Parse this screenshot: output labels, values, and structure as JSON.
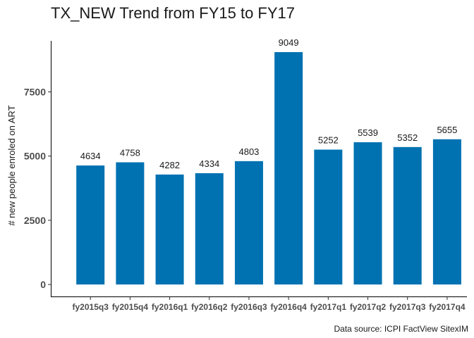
{
  "chart_data": {
    "type": "bar",
    "title": "TX_NEW Trend from FY15 to FY17",
    "xlabel": "",
    "ylabel": "# new people enroled on ART",
    "caption": "Data source: ICPI FactView SitexIM",
    "categories": [
      "fy2015q3",
      "fy2015q4",
      "fy2016q1",
      "fy2016q2",
      "fy2016q3",
      "fy2016q4",
      "fy2017q1",
      "fy2017q2",
      "fy2017q3",
      "fy2017q4"
    ],
    "values": [
      4634,
      4758,
      4282,
      4334,
      4803,
      9049,
      5252,
      5539,
      5352,
      5655
    ],
    "data_labels": [
      "4634",
      "4758",
      "4282",
      "4334",
      "4803",
      "9049",
      "5252",
      "5539",
      "5352",
      "5655"
    ],
    "yticks": [
      0,
      2500,
      5000,
      7500
    ],
    "ytick_labels": [
      "0",
      "2500",
      "5000",
      "7500"
    ],
    "ylim": [
      0,
      9500
    ],
    "bar_color": "#0072b2",
    "grid": false,
    "legend": "none"
  }
}
